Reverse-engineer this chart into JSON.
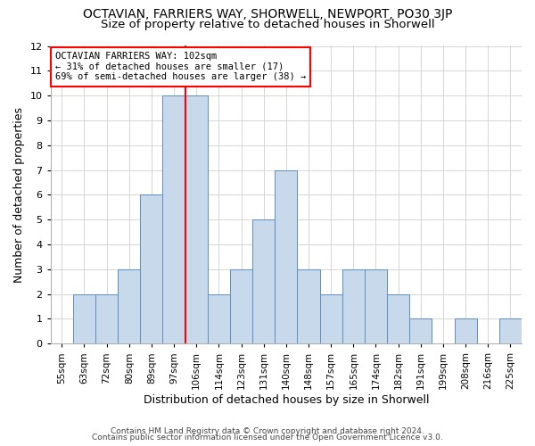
{
  "title": "OCTAVIAN, FARRIERS WAY, SHORWELL, NEWPORT, PO30 3JP",
  "subtitle": "Size of property relative to detached houses in Shorwell",
  "xlabel": "Distribution of detached houses by size in Shorwell",
  "ylabel": "Number of detached properties",
  "categories": [
    "55sqm",
    "63sqm",
    "72sqm",
    "80sqm",
    "89sqm",
    "97sqm",
    "106sqm",
    "114sqm",
    "123sqm",
    "131sqm",
    "140sqm",
    "148sqm",
    "157sqm",
    "165sqm",
    "174sqm",
    "182sqm",
    "191sqm",
    "199sqm",
    "208sqm",
    "216sqm",
    "225sqm"
  ],
  "values": [
    0,
    2,
    2,
    3,
    6,
    10,
    10,
    2,
    3,
    5,
    7,
    3,
    2,
    3,
    3,
    2,
    1,
    0,
    1,
    0,
    1
  ],
  "bar_color": "#c9d9ec",
  "bar_edge_color": "#5a8fc0",
  "grid_color": "#d0d0d0",
  "vline_x": 5.5,
  "vline_color": "red",
  "ylim": [
    0,
    12
  ],
  "yticks": [
    0,
    1,
    2,
    3,
    4,
    5,
    6,
    7,
    8,
    9,
    10,
    11,
    12
  ],
  "annotation_text": "OCTAVIAN FARRIERS WAY: 102sqm\n← 31% of detached houses are smaller (17)\n69% of semi-detached houses are larger (38) →",
  "annotation_box_color": "white",
  "annotation_box_edge_color": "red",
  "footer1": "Contains HM Land Registry data © Crown copyright and database right 2024.",
  "footer2": "Contains public sector information licensed under the Open Government Licence v3.0.",
  "background_color": "#ffffff",
  "plot_bg_color": "#ffffff",
  "title_fontsize": 10,
  "subtitle_fontsize": 9.5,
  "tick_fontsize": 7.5,
  "ylabel_fontsize": 9,
  "xlabel_fontsize": 9,
  "annotation_fontsize": 7.5,
  "footer_fontsize": 6.5
}
